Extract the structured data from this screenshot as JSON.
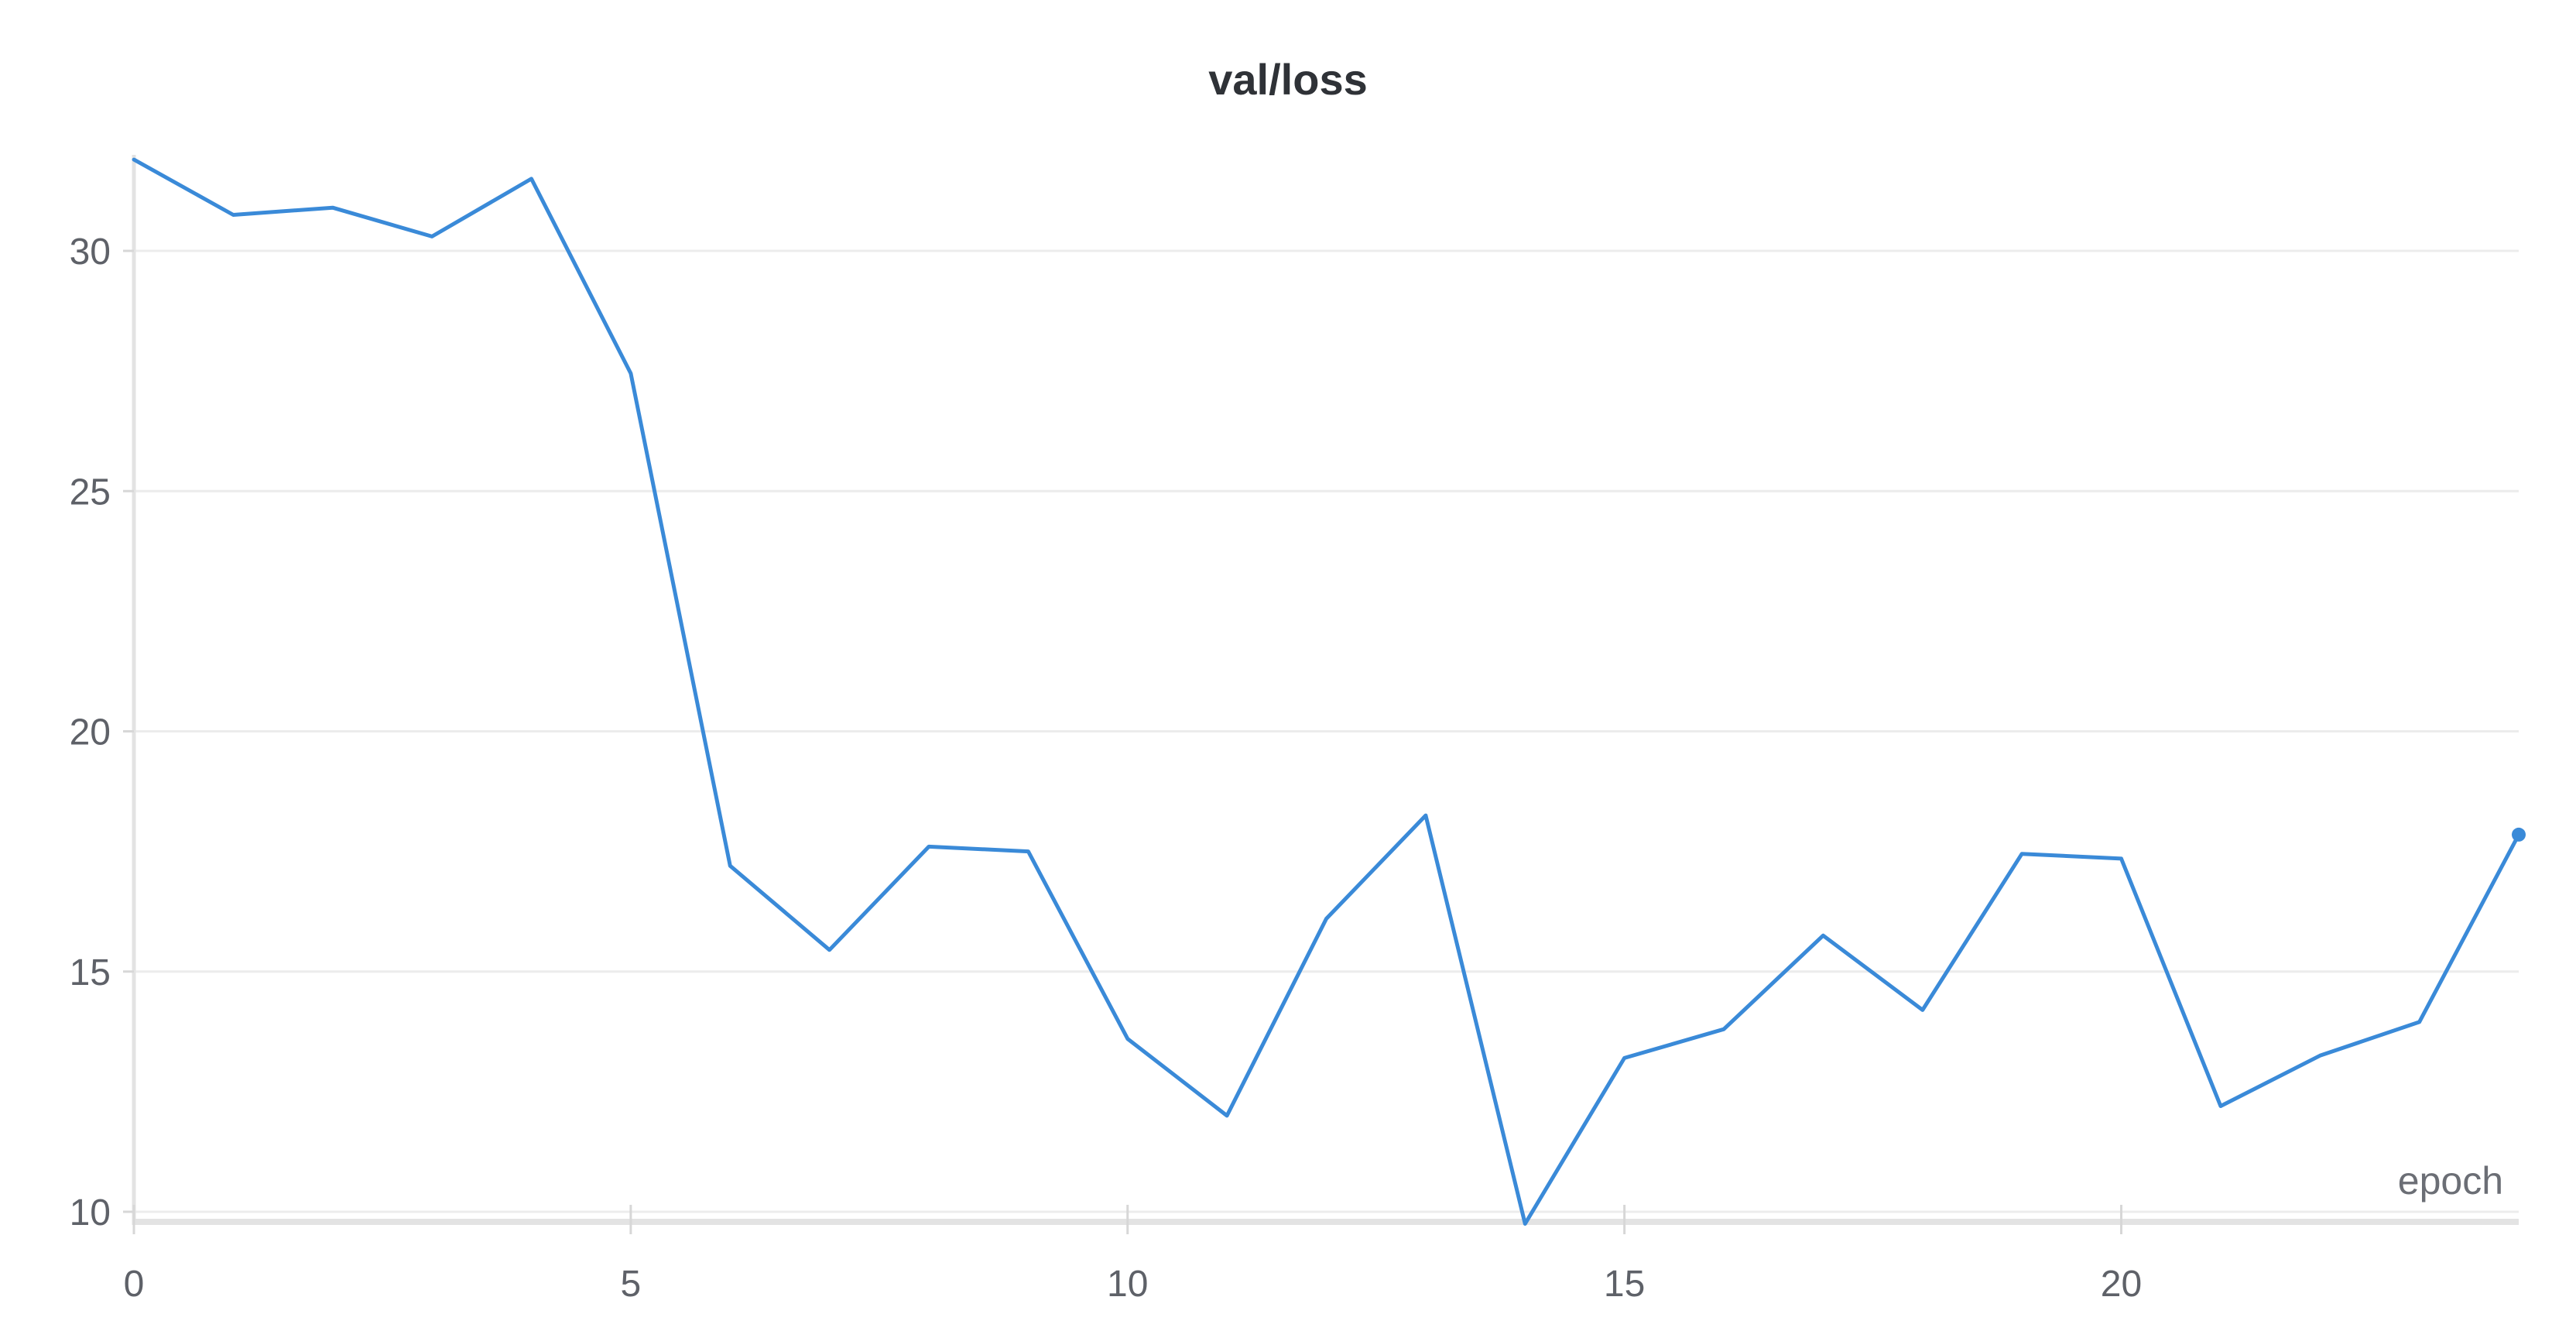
{
  "chart_data": {
    "type": "line",
    "title": "val/loss",
    "xlabel": "epoch",
    "ylabel": "",
    "xlim": [
      0,
      24
    ],
    "ylim": [
      10,
      32
    ],
    "x_ticks": [
      0,
      5,
      10,
      15,
      20
    ],
    "y_ticks": [
      10,
      15,
      20,
      25,
      30
    ],
    "grid": true,
    "legend": "none",
    "series": [
      {
        "color": "#3a8ad8",
        "x": [
          0,
          1,
          2,
          3,
          4,
          5,
          6,
          7,
          8,
          9,
          10,
          11,
          12,
          13,
          14,
          15,
          16,
          17,
          18,
          19,
          20,
          21,
          22,
          23,
          24
        ],
        "y": [
          31.9,
          30.75,
          30.9,
          30.3,
          31.5,
          27.45,
          17.2,
          15.45,
          17.6,
          17.5,
          13.6,
          12.0,
          16.1,
          18.25,
          9.75,
          13.2,
          13.8,
          15.75,
          14.2,
          17.45,
          17.35,
          12.2,
          13.25,
          13.95,
          17.85
        ]
      }
    ]
  }
}
